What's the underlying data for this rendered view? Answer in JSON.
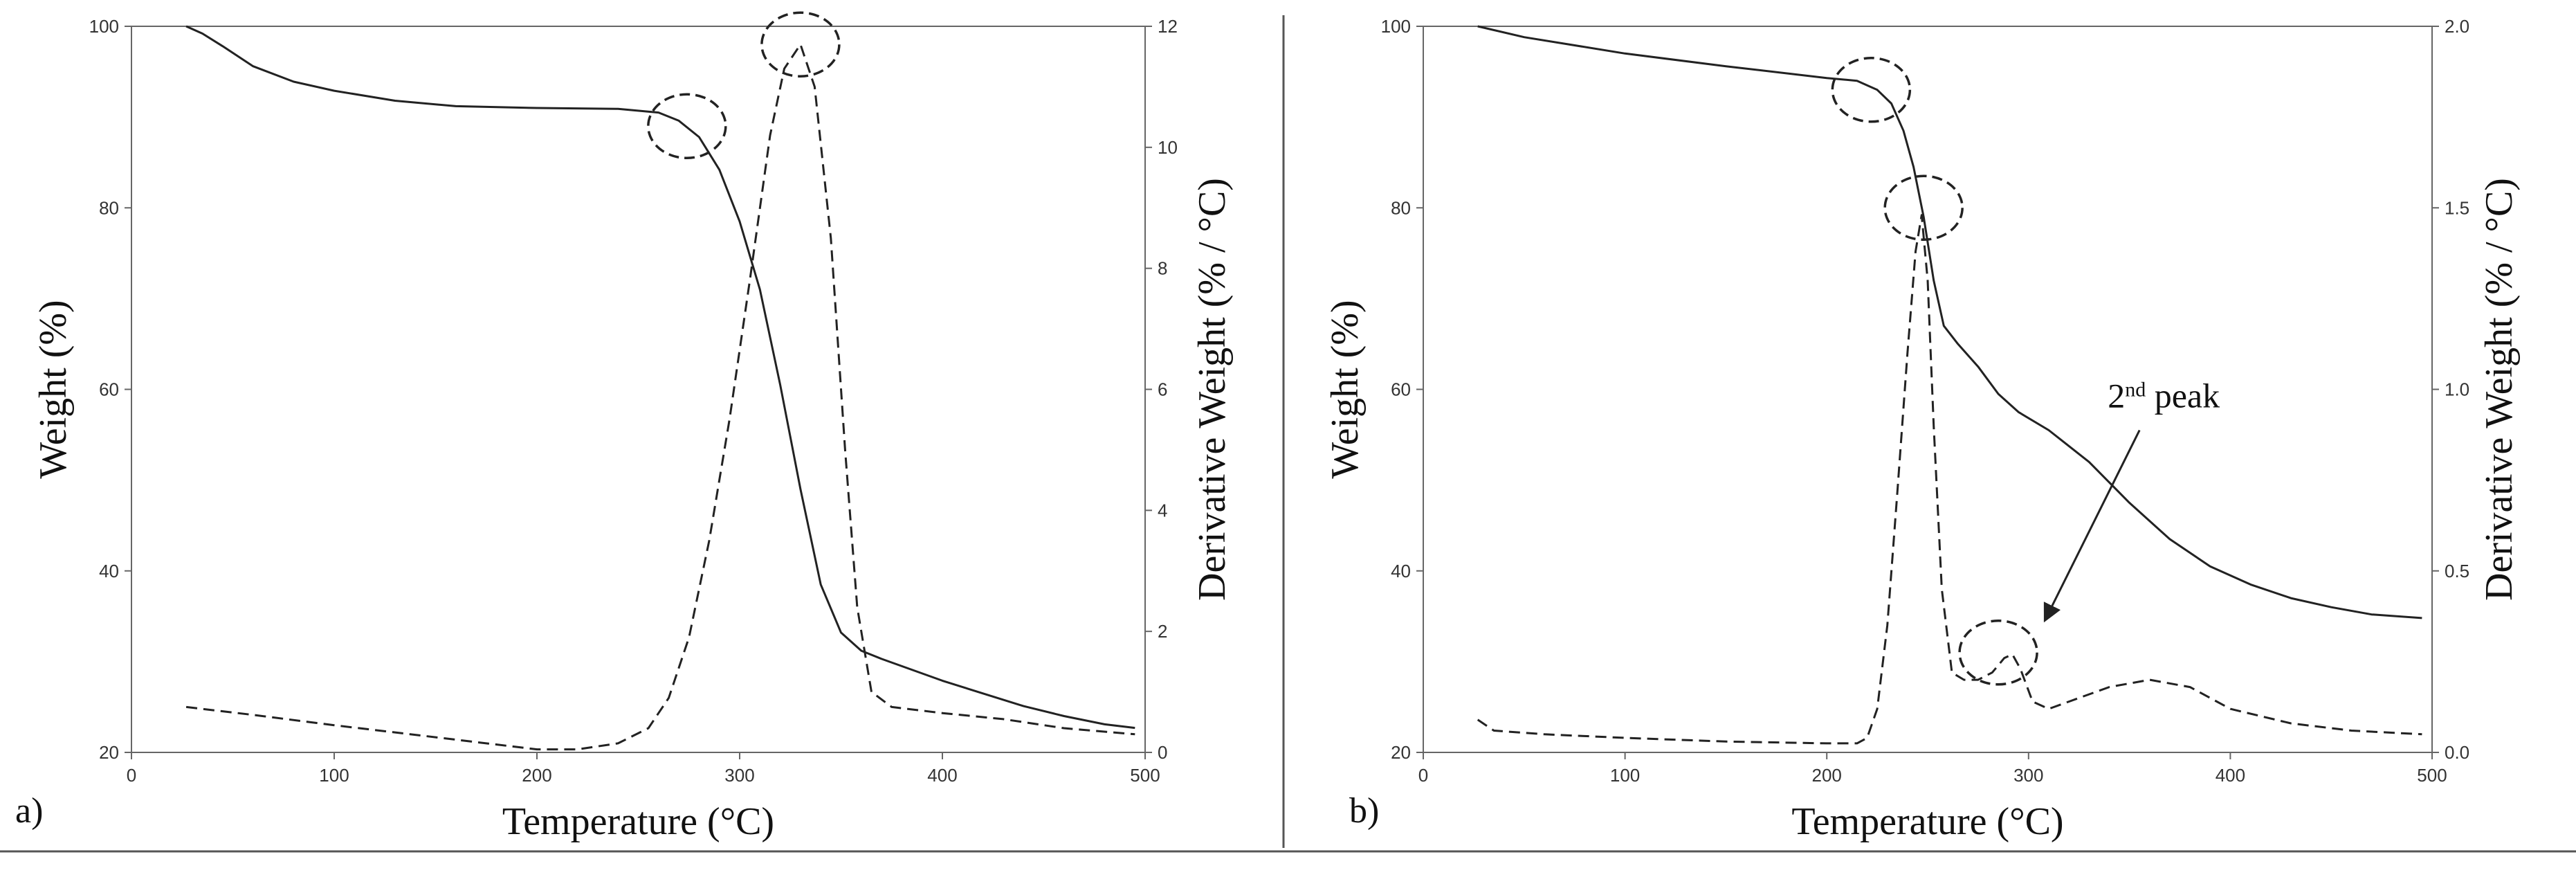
{
  "figure": {
    "divider_color": "#555555",
    "line_color": "#222222"
  },
  "chart_data": [
    {
      "type": "line",
      "panel_label": "a)",
      "xlabel": "Temperature (°C)",
      "ylabel": "Weight (%)",
      "y2label": "Derivative Weight (% / °C)",
      "xlim": [
        0,
        500
      ],
      "ylim": [
        20,
        100
      ],
      "y2lim": [
        0,
        12
      ],
      "xticks": [
        0,
        100,
        200,
        300,
        400,
        500
      ],
      "yticks": [
        20,
        40,
        60,
        80,
        100
      ],
      "y2ticks": [
        0,
        2,
        4,
        6,
        8,
        10,
        12
      ],
      "grid": false,
      "series": [
        {
          "name": "Weight",
          "axis": "left",
          "style": "solid",
          "x": [
            27,
            35,
            45,
            60,
            80,
            100,
            130,
            160,
            200,
            240,
            260,
            270,
            280,
            290,
            300,
            310,
            320,
            330,
            340,
            350,
            360,
            370,
            380,
            400,
            420,
            440,
            460,
            480,
            495
          ],
          "y": [
            100,
            99.2,
            97.8,
            95.6,
            93.9,
            92.9,
            91.8,
            91.2,
            91.0,
            90.9,
            90.5,
            89.6,
            87.8,
            84.2,
            78.5,
            71.0,
            60.5,
            49.0,
            38.5,
            33.2,
            31.2,
            30.3,
            29.5,
            27.9,
            26.5,
            25.1,
            24.0,
            23.1,
            22.7
          ]
        },
        {
          "name": "Derivative Weight",
          "axis": "right",
          "style": "dashed",
          "x": [
            27,
            60,
            100,
            150,
            200,
            220,
            240,
            255,
            265,
            275,
            285,
            295,
            305,
            315,
            322,
            330,
            337,
            345,
            352,
            358,
            365,
            375,
            400,
            430,
            460,
            495
          ],
          "y": [
            0.75,
            0.62,
            0.45,
            0.25,
            0.05,
            0.05,
            0.15,
            0.4,
            0.9,
            1.9,
            3.5,
            5.5,
            7.8,
            10.2,
            11.3,
            11.7,
            11.0,
            8.5,
            5.0,
            2.4,
            1.0,
            0.75,
            0.65,
            0.55,
            0.4,
            0.3
          ]
        }
      ],
      "annotations": [
        {
          "type": "dashed-ellipse",
          "cx": 274,
          "cy": 89
        },
        {
          "type": "dashed-ellipse",
          "cx": 330,
          "cy": 98
        }
      ]
    },
    {
      "type": "line",
      "panel_label": "b)",
      "xlabel": "Temperature (°C)",
      "ylabel": "Weight (%)",
      "y2label": "Derivative Weight (% / °C)",
      "xlim": [
        0,
        500
      ],
      "ylim": [
        20,
        100
      ],
      "y2lim": [
        0,
        2.0
      ],
      "xticks": [
        0,
        100,
        200,
        300,
        400,
        500
      ],
      "yticks": [
        20,
        40,
        60,
        80,
        100
      ],
      "y2ticks": [
        0.0,
        0.5,
        1.0,
        1.5,
        2.0
      ],
      "grid": false,
      "series": [
        {
          "name": "Weight",
          "axis": "left",
          "style": "solid",
          "x": [
            27,
            50,
            100,
            150,
            200,
            215,
            225,
            232,
            238,
            243,
            248,
            253,
            258,
            265,
            275,
            285,
            295,
            310,
            330,
            350,
            370,
            390,
            410,
            430,
            450,
            470,
            495
          ],
          "y": [
            100,
            98.8,
            97.0,
            95.6,
            94.3,
            94.0,
            93.0,
            91.5,
            88.5,
            84.5,
            79.0,
            72.0,
            67.0,
            65.0,
            62.5,
            59.5,
            57.5,
            55.5,
            52.0,
            47.5,
            43.5,
            40.5,
            38.5,
            37.0,
            36.0,
            35.2,
            34.8
          ]
        },
        {
          "name": "Derivative Weight",
          "axis": "right",
          "style": "dashed",
          "x": [
            27,
            35,
            60,
            100,
            150,
            200,
            215,
            220,
            225,
            230,
            235,
            240,
            244,
            247,
            250,
            253,
            257,
            262,
            268,
            275,
            282,
            288,
            292,
            296,
            302,
            310,
            320,
            340,
            360,
            380,
            400,
            430,
            460,
            495
          ],
          "y": [
            0.09,
            0.06,
            0.05,
            0.04,
            0.03,
            0.025,
            0.025,
            0.04,
            0.12,
            0.35,
            0.72,
            1.1,
            1.38,
            1.48,
            1.3,
            0.9,
            0.45,
            0.22,
            0.2,
            0.2,
            0.22,
            0.26,
            0.27,
            0.23,
            0.14,
            0.12,
            0.14,
            0.18,
            0.2,
            0.18,
            0.12,
            0.08,
            0.06,
            0.05
          ]
        }
      ],
      "annotations": [
        {
          "type": "dashed-ellipse",
          "cx": 222,
          "cy": 93
        },
        {
          "type": "dashed-ellipse",
          "cx": 248,
          "cy": 80
        },
        {
          "type": "dashed-ellipse",
          "cx": 285,
          "cy": 31
        },
        {
          "type": "arrow-label",
          "text_main": "2",
          "text_sup": "nd",
          "text_rest": " peak",
          "text_at": [
            367,
            58
          ],
          "from": [
            355,
            55.5
          ],
          "to": [
            308,
            34.5
          ]
        }
      ]
    }
  ]
}
